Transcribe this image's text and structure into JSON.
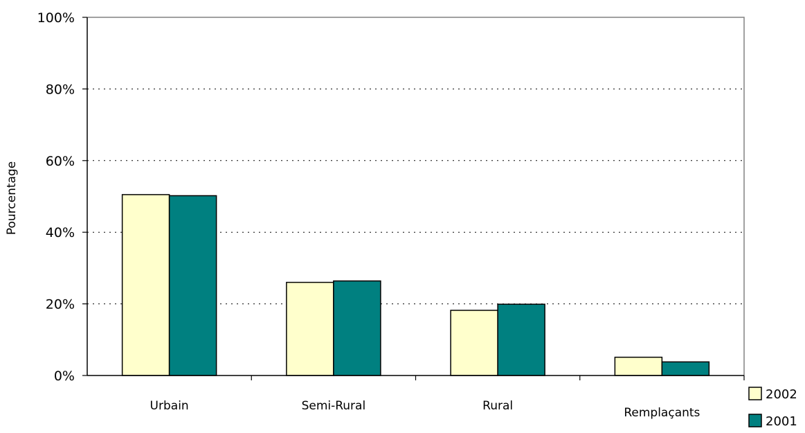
{
  "chart_data": {
    "type": "bar",
    "title": "",
    "xlabel": "",
    "ylabel": "Pourcentage",
    "categories": [
      "Urbain",
      "Semi-Rural",
      "Rural",
      "Remplaçants"
    ],
    "series": [
      {
        "name": "2002",
        "values": [
          50.5,
          26.0,
          18.2,
          5.1
        ],
        "color": "#ffffcc"
      },
      {
        "name": "2001",
        "values": [
          50.2,
          26.4,
          19.9,
          3.8
        ],
        "color": "#008080"
      }
    ],
    "ylim": [
      0,
      100
    ],
    "y_ticks": [
      0,
      20,
      40,
      60,
      80,
      100
    ],
    "y_tick_labels": [
      "0%",
      "20%",
      "40%",
      "60%",
      "80%",
      "100%"
    ],
    "grid": true,
    "grid_style": "dotted",
    "legend_position": "bottom-right"
  }
}
